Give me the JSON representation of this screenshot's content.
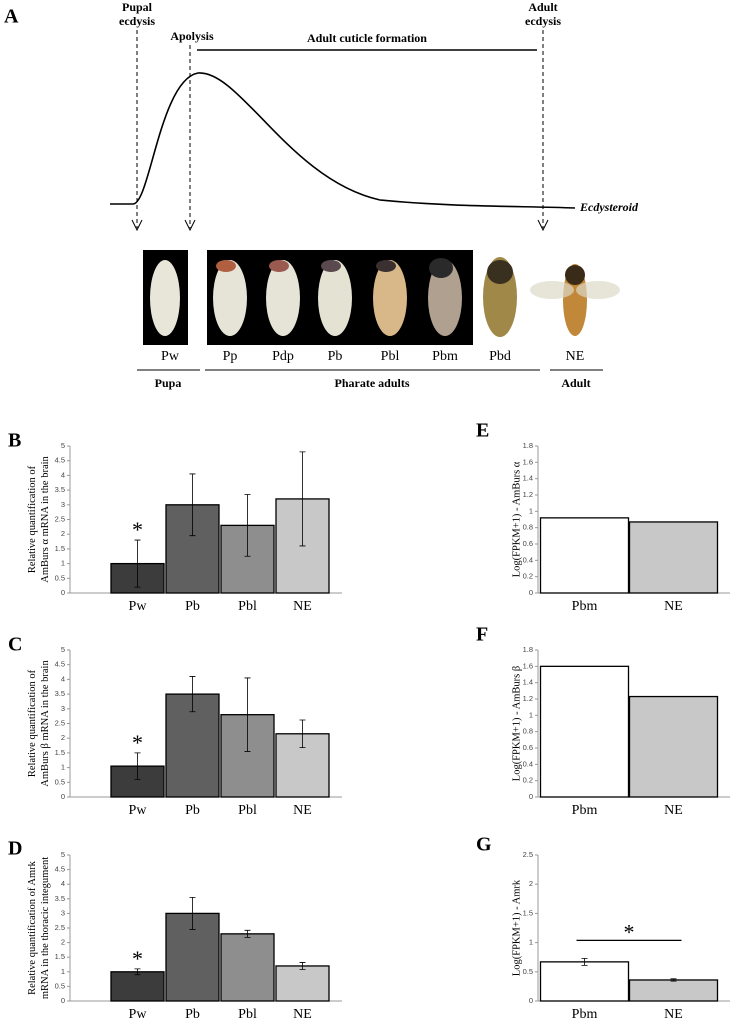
{
  "timeline": {
    "panel": "A",
    "pupal_ecdysis": [
      "Pupal",
      "ecdysis"
    ],
    "apolysis": "Apolysis",
    "cuticle": "Adult cuticle formation",
    "adult_ecdysis": [
      "Adult",
      "ecdysis"
    ],
    "curve_label": "Ecdysteroid",
    "stages": [
      "Pw",
      "Pp",
      "Pdp",
      "Pb",
      "Pbl",
      "Pbm",
      "Pbd",
      "NE"
    ],
    "groups": [
      "Pupa",
      "Pharate adults",
      "Adult"
    ]
  },
  "chart_data": [
    {
      "type": "bar",
      "panel": "B",
      "ylabel": [
        "Relative quantification of",
        "AmBurs α mRNA in the brain"
      ],
      "categories": [
        "Pw",
        "Pb",
        "Pbl",
        "NE"
      ],
      "values": [
        1.0,
        3.0,
        2.3,
        3.2
      ],
      "errors": [
        0.8,
        1.05,
        1.05,
        1.6
      ],
      "colors": [
        "#3c3c3c",
        "#606060",
        "#8e8e8e",
        "#c8c8c8"
      ],
      "ylim": [
        0,
        5
      ],
      "yticks": [
        0,
        0.5,
        1,
        1.5,
        2,
        2.5,
        3,
        3.5,
        4,
        4.5,
        5
      ],
      "annotation": "*"
    },
    {
      "type": "bar",
      "panel": "C",
      "ylabel": [
        "Relative quantification of",
        "AmBurs β mRNA in the brain"
      ],
      "categories": [
        "Pw",
        "Pb",
        "Pbl",
        "NE"
      ],
      "values": [
        1.05,
        3.5,
        2.8,
        2.15
      ],
      "errors": [
        0.45,
        0.6,
        1.25,
        0.47
      ],
      "colors": [
        "#3c3c3c",
        "#606060",
        "#8e8e8e",
        "#c8c8c8"
      ],
      "ylim": [
        0,
        5
      ],
      "yticks": [
        0,
        0.5,
        1,
        1.5,
        2,
        2.5,
        3,
        3.5,
        4,
        4.5,
        5
      ],
      "annotation": "*"
    },
    {
      "type": "bar",
      "panel": "D",
      "ylabel": [
        "Relative quantification of Amrk",
        "mRNA in the thoracic integument"
      ],
      "categories": [
        "Pw",
        "Pb",
        "Pbl",
        "NE"
      ],
      "values": [
        1.0,
        3.0,
        2.3,
        1.2
      ],
      "errors": [
        0.1,
        0.55,
        0.12,
        0.12
      ],
      "colors": [
        "#3c3c3c",
        "#606060",
        "#8e8e8e",
        "#c8c8c8"
      ],
      "ylim": [
        0,
        5
      ],
      "yticks": [
        0,
        0.5,
        1,
        1.5,
        2,
        2.5,
        3,
        3.5,
        4,
        4.5,
        5
      ],
      "annotation": "*"
    },
    {
      "type": "bar",
      "panel": "E",
      "ylabel": [
        "Log(FPKM+1) - AmBurs α"
      ],
      "categories": [
        "Pbm",
        "NE"
      ],
      "values": [
        0.92,
        0.87
      ],
      "colors": [
        "#ffffff",
        "#c8c8c8"
      ],
      "ylim": [
        0,
        1.8
      ],
      "yticks": [
        0,
        0.2,
        0.4,
        0.6,
        0.8,
        1,
        1.2,
        1.4,
        1.6,
        1.8
      ]
    },
    {
      "type": "bar",
      "panel": "F",
      "ylabel": [
        "Log(FPKM+1) - AmBurs β"
      ],
      "categories": [
        "Pbm",
        "NE"
      ],
      "values": [
        1.6,
        1.23
      ],
      "colors": [
        "#ffffff",
        "#c8c8c8"
      ],
      "ylim": [
        0,
        1.8
      ],
      "yticks": [
        0,
        0.2,
        0.4,
        0.6,
        0.8,
        1,
        1.2,
        1.4,
        1.6,
        1.8
      ]
    },
    {
      "type": "bar",
      "panel": "G",
      "ylabel": [
        "Log(FPKM+1) - Amrk"
      ],
      "categories": [
        "Pbm",
        "NE"
      ],
      "values": [
        0.67,
        0.36
      ],
      "errors": [
        0.06,
        0.02
      ],
      "colors": [
        "#ffffff",
        "#c8c8c8"
      ],
      "ylim": [
        0,
        2.5
      ],
      "yticks": [
        0,
        0.5,
        1,
        1.5,
        2,
        2.5
      ],
      "annotation": "*"
    }
  ]
}
